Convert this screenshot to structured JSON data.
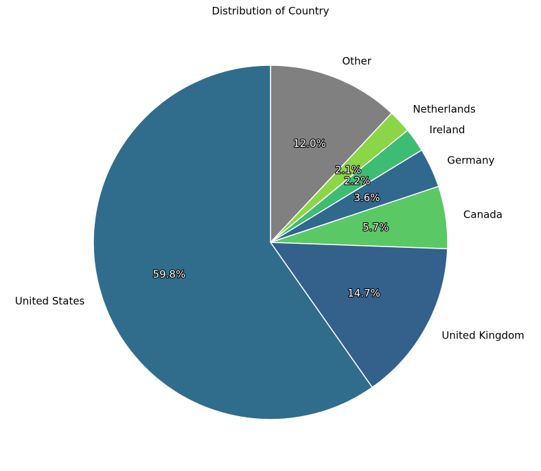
{
  "chart_data": {
    "type": "pie",
    "title": "Distribution of Country",
    "start_angle_deg": 90,
    "direction": "clockwise",
    "slices": [
      {
        "label": "Other",
        "value": 12.0,
        "pct_label": "12.0%",
        "color": "#808080"
      },
      {
        "label": "Netherlands",
        "value": 2.1,
        "pct_label": "2.1%",
        "color": "#8bd646"
      },
      {
        "label": "Ireland",
        "value": 2.2,
        "pct_label": "2.2%",
        "color": "#3fbc73"
      },
      {
        "label": "Germany",
        "value": 3.6,
        "pct_label": "3.6%",
        "color": "#31688e"
      },
      {
        "label": "Canada",
        "value": 5.7,
        "pct_label": "5.7%",
        "color": "#5ac864"
      },
      {
        "label": "United Kingdom",
        "value": 14.7,
        "pct_label": "14.7%",
        "color": "#33618c"
      },
      {
        "label": "United States",
        "value": 59.8,
        "pct_label": "59.8%",
        "color": "#306d8d"
      }
    ]
  }
}
